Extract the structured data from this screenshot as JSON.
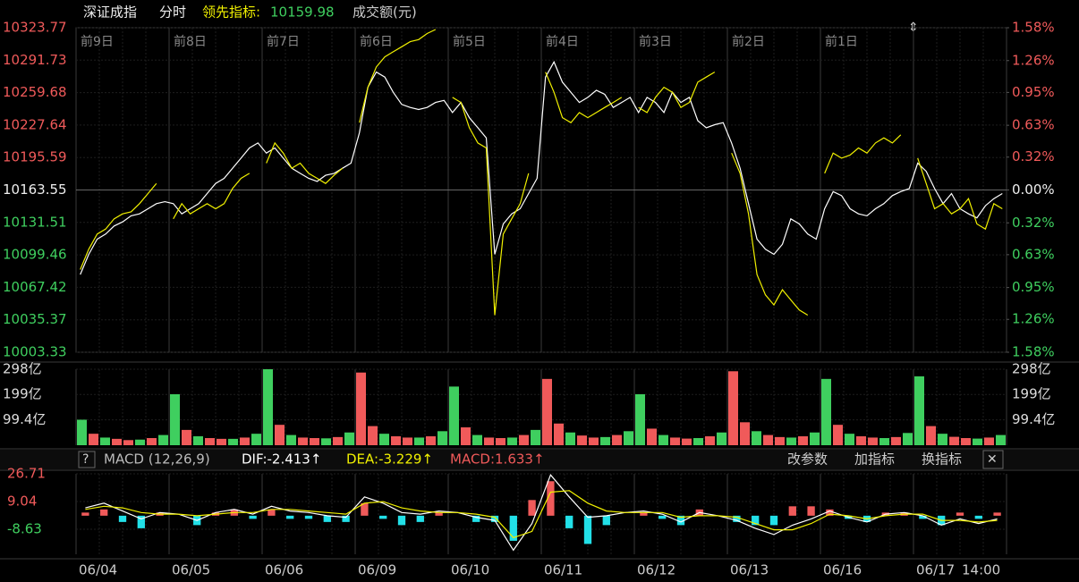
{
  "header": {
    "name": "深证成指",
    "mode": "分时",
    "indicator_label": "领先指标:",
    "indicator_value": "10159.98",
    "volume_label": "成交额(元)"
  },
  "macd_header": {
    "help": "?",
    "name": "MACD (12,26,9)",
    "dif": "DIF:-2.413↑",
    "dea": "DEA:-3.229↑",
    "macd": "MACD:1.633↑",
    "buttons": [
      "改参数",
      "加指标",
      "换指标"
    ],
    "close": "✕"
  },
  "chart_data": [
    {
      "type": "line",
      "day_labels": [
        "前9日",
        "前8日",
        "前7日",
        "前6日",
        "前5日",
        "前4日",
        "前3日",
        "前2日",
        "前1日"
      ],
      "ylim": [
        10003.33,
        10323.77
      ],
      "yticks": [
        10003.33,
        10035.37,
        10067.42,
        10099.46,
        10131.51,
        10163.55,
        10195.59,
        10227.64,
        10259.68,
        10291.73,
        10323.77
      ],
      "y2lim": [
        -1.58,
        1.58
      ],
      "y2ticks": [
        {
          "value": -1.58,
          "label": "1.58%"
        },
        {
          "value": -1.26,
          "label": "1.26%"
        },
        {
          "value": -0.95,
          "label": "0.95%"
        },
        {
          "value": -0.63,
          "label": "0.63%"
        },
        {
          "value": -0.32,
          "label": "0.32%"
        },
        {
          "value": 0,
          "label": "0.00%"
        },
        {
          "value": 0.32,
          "label": "0.32%"
        },
        {
          "value": 0.63,
          "label": "0.63%"
        },
        {
          "value": 0.95,
          "label": "0.95%"
        },
        {
          "value": 1.26,
          "label": "1.26%"
        },
        {
          "value": 1.58,
          "label": "1.58%"
        }
      ],
      "series": [
        {
          "color": "#ffffff",
          "values": [
            10080,
            10100,
            10115,
            10120,
            10128,
            10132,
            10138,
            10140,
            10145,
            10150,
            10152,
            10150,
            10140,
            10145,
            10150,
            10160,
            10170,
            10175,
            10185,
            10195,
            10205,
            10210,
            10200,
            10205,
            10195,
            10185,
            10180,
            10175,
            10172,
            10178,
            10180,
            10185,
            10190,
            10220,
            10265,
            10280,
            10275,
            10260,
            10248,
            10245,
            10243,
            10245,
            10250,
            10252,
            10240,
            10250,
            10235,
            10225,
            10215,
            10100,
            10130,
            10140,
            10145,
            10160,
            10175,
            10275,
            10290,
            10270,
            10260,
            10250,
            10255,
            10262,
            10258,
            10245,
            10250,
            10255,
            10240,
            10255,
            10250,
            10240,
            10260,
            10250,
            10255,
            10232,
            10225,
            10228,
            10230,
            10210,
            10185,
            10150,
            10115,
            10105,
            10100,
            10110,
            10135,
            10130,
            10120,
            10115,
            10145,
            10162,
            10158,
            10145,
            10140,
            10138,
            10145,
            10150,
            10158,
            10162,
            10165,
            10190,
            10182,
            10165,
            10150,
            10160,
            10145,
            10140,
            10136,
            10148,
            10155,
            10160
          ]
        },
        {
          "color": "#f0f000",
          "values": [
            10085,
            10105,
            10120,
            10125,
            10135,
            10140,
            10142,
            10150,
            10160,
            10170,
            null,
            10135,
            10150,
            10140,
            10145,
            10150,
            10145,
            10150,
            10165,
            10175,
            10180,
            null,
            10190,
            10210,
            10200,
            10185,
            10190,
            10180,
            10175,
            10170,
            10178,
            10185,
            null,
            10230,
            10265,
            10285,
            10295,
            10300,
            10305,
            10310,
            10312,
            10318,
            10322,
            null,
            10255,
            10250,
            10225,
            10210,
            10205,
            10040,
            10120,
            10135,
            10150,
            10180,
            null,
            10280,
            10260,
            10235,
            10230,
            10240,
            10235,
            10240,
            10245,
            10250,
            10255,
            null,
            10245,
            10240,
            10255,
            10265,
            10260,
            10245,
            10250,
            10270,
            10275,
            10280,
            null,
            10200,
            10180,
            10140,
            10080,
            10060,
            10050,
            10065,
            10055,
            10045,
            10040,
            null,
            10180,
            10200,
            10195,
            10198,
            10205,
            10200,
            10210,
            10215,
            10210,
            10218,
            null,
            10195,
            10170,
            10145,
            10150,
            10140,
            10145,
            10155,
            10130,
            10125,
            10150,
            10145
          ]
        }
      ]
    },
    {
      "type": "bar",
      "ylim": [
        0,
        298
      ],
      "yticks": [
        {
          "value": 99.4,
          "label": "99.4亿"
        },
        {
          "value": 199,
          "label": "199亿"
        },
        {
          "value": 298,
          "label": "298亿"
        }
      ],
      "values": [
        100,
        45,
        30,
        25,
        20,
        22,
        28,
        40,
        200,
        60,
        35,
        28,
        25,
        25,
        30,
        45,
        298,
        80,
        40,
        30,
        28,
        27,
        32,
        50,
        285,
        75,
        45,
        35,
        30,
        30,
        35,
        55,
        230,
        70,
        40,
        30,
        28,
        30,
        40,
        60,
        260,
        85,
        50,
        38,
        30,
        32,
        40,
        55,
        200,
        65,
        40,
        30,
        26,
        28,
        35,
        50,
        290,
        90,
        55,
        40,
        32,
        30,
        35,
        50,
        260,
        80,
        45,
        35,
        30,
        28,
        32,
        48,
        270,
        75,
        45,
        33,
        28,
        26,
        30,
        40
      ],
      "colors": [
        "#3fcf5f",
        "#f05a5a",
        "#3fcf5f",
        "#f05a5a",
        "#f05a5a",
        "#3fcf5f",
        "#f05a5a",
        "#3fcf5f",
        "#3fcf5f",
        "#f05a5a",
        "#3fcf5f",
        "#f05a5a",
        "#f05a5a",
        "#3fcf5f",
        "#f05a5a",
        "#3fcf5f",
        "#3fcf5f",
        "#f05a5a",
        "#3fcf5f",
        "#f05a5a",
        "#f05a5a",
        "#3fcf5f",
        "#f05a5a",
        "#3fcf5f",
        "#f05a5a",
        "#f05a5a",
        "#3fcf5f",
        "#f05a5a",
        "#f05a5a",
        "#3fcf5f",
        "#f05a5a",
        "#3fcf5f",
        "#3fcf5f",
        "#f05a5a",
        "#3fcf5f",
        "#f05a5a",
        "#f05a5a",
        "#3fcf5f",
        "#f05a5a",
        "#3fcf5f",
        "#f05a5a",
        "#f05a5a",
        "#3fcf5f",
        "#f05a5a",
        "#f05a5a",
        "#3fcf5f",
        "#f05a5a",
        "#3fcf5f",
        "#3fcf5f",
        "#f05a5a",
        "#3fcf5f",
        "#f05a5a",
        "#f05a5a",
        "#3fcf5f",
        "#f05a5a",
        "#3fcf5f",
        "#f05a5a",
        "#f05a5a",
        "#3fcf5f",
        "#f05a5a",
        "#f05a5a",
        "#3fcf5f",
        "#f05a5a",
        "#3fcf5f",
        "#3fcf5f",
        "#f05a5a",
        "#3fcf5f",
        "#f05a5a",
        "#f05a5a",
        "#3fcf5f",
        "#f05a5a",
        "#3fcf5f",
        "#3fcf5f",
        "#f05a5a",
        "#3fcf5f",
        "#f05a5a",
        "#f05a5a",
        "#3fcf5f",
        "#f05a5a",
        "#3fcf5f"
      ]
    },
    {
      "type": "macd",
      "ylim": [
        -24.6,
        26.71
      ],
      "yticks": [
        -8.63,
        9.04,
        26.71
      ],
      "x_labels": [
        "06/04",
        "06/05",
        "06/06",
        "06/09",
        "06/10",
        "06/11",
        "06/12",
        "06/13",
        "06/16",
        "06/17",
        "14:00"
      ],
      "up_color": "#f05a5a",
      "down_color": "#22e0e8",
      "series": [
        {
          "name": "DIF",
          "color": "#ffffff",
          "values": [
            5,
            8,
            3,
            -2,
            2,
            1,
            -3,
            2,
            4,
            1,
            6,
            3,
            2,
            0,
            -1,
            12,
            8,
            2,
            1,
            3,
            2,
            -1,
            -3,
            -22,
            -5,
            26,
            12,
            -1,
            0,
            2,
            3,
            1,
            -4,
            2,
            0,
            -3,
            -8,
            -12,
            -6,
            -2,
            3,
            -1,
            -4,
            1,
            2,
            0,
            -6,
            -2,
            -5,
            -2
          ]
        },
        {
          "name": "DEA",
          "color": "#f0f000",
          "values": [
            4,
            6,
            5,
            2,
            1,
            1,
            0,
            1,
            2,
            2,
            4,
            4,
            3,
            2,
            1,
            8,
            9,
            5,
            3,
            2,
            2,
            1,
            -1,
            -14,
            -10,
            15,
            16,
            8,
            3,
            2,
            2,
            2,
            -1,
            0,
            0,
            -1,
            -5,
            -9,
            -9,
            -5,
            1,
            0,
            -2,
            0,
            1,
            1,
            -3,
            -3,
            -4,
            -3
          ]
        }
      ],
      "histogram": [
        2,
        4,
        -4,
        -8,
        2,
        0,
        -6,
        2,
        4,
        -2,
        4,
        -2,
        -2,
        -4,
        -4,
        8,
        -2,
        -6,
        -4,
        2,
        0,
        -4,
        -4,
        -16,
        10,
        22,
        -8,
        -18,
        -6,
        0,
        2,
        -2,
        -6,
        4,
        0,
        -4,
        -6,
        -6,
        6,
        6,
        4,
        -2,
        -4,
        2,
        2,
        -2,
        -6,
        2,
        -2,
        2
      ]
    }
  ]
}
